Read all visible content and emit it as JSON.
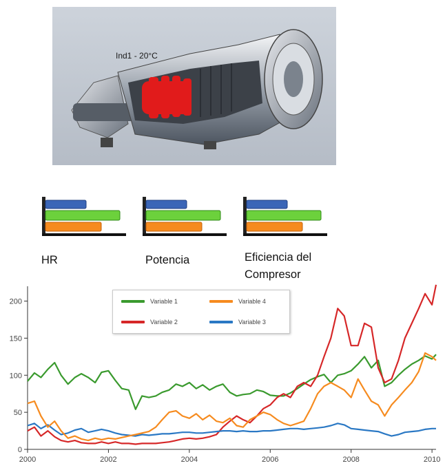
{
  "image": {
    "caption": "Ind1 - 20°C"
  },
  "kpis": [
    {
      "label": "HR",
      "bars": [
        0.55,
        1.0,
        0.75
      ]
    },
    {
      "label": "Potencia",
      "bars": [
        0.55,
        1.0,
        0.75
      ]
    },
    {
      "label": "Eficiencia del Compresor",
      "bars": [
        0.55,
        1.0,
        0.75
      ]
    }
  ],
  "colors": {
    "variable_1": "#3a9a2e",
    "variable_2": "#d62728",
    "variable_3": "#2a78c4",
    "variable_4": "#f68b1f",
    "kpi_blue": "#3b66b7",
    "kpi_green": "#6cd13c",
    "kpi_orange": "#f68b1f"
  },
  "chart_data": {
    "type": "line",
    "xlim": [
      2000,
      2010.1
    ],
    "ylim": [
      0,
      220
    ],
    "xticks": [
      2000,
      2002,
      2004,
      2006,
      2008,
      2010
    ],
    "yticks": [
      0,
      50,
      100,
      150,
      200
    ],
    "legend_position": "top-center",
    "x": [
      2000,
      2000.17,
      2000.33,
      2000.5,
      2000.67,
      2000.83,
      2001,
      2001.17,
      2001.33,
      2001.5,
      2001.67,
      2001.83,
      2002,
      2002.17,
      2002.33,
      2002.5,
      2002.67,
      2002.83,
      2003,
      2003.17,
      2003.33,
      2003.5,
      2003.67,
      2003.83,
      2004,
      2004.17,
      2004.33,
      2004.5,
      2004.67,
      2004.83,
      2005,
      2005.17,
      2005.33,
      2005.5,
      2005.67,
      2005.83,
      2006,
      2006.17,
      2006.33,
      2006.5,
      2006.67,
      2006.83,
      2007,
      2007.17,
      2007.33,
      2007.5,
      2007.67,
      2007.83,
      2008,
      2008.17,
      2008.33,
      2008.5,
      2008.67,
      2008.83,
      2009,
      2009.17,
      2009.33,
      2009.5,
      2009.67,
      2009.83,
      2010,
      2010.1
    ],
    "series": [
      {
        "name": "Variable 1",
        "color_key": "variable_1",
        "values": [
          92,
          103,
          97,
          108,
          117,
          100,
          88,
          97,
          102,
          97,
          90,
          104,
          106,
          93,
          82,
          80,
          54,
          72,
          70,
          72,
          77,
          80,
          88,
          85,
          90,
          82,
          87,
          80,
          85,
          88,
          77,
          72,
          74,
          75,
          80,
          78,
          73,
          72,
          72,
          76,
          82,
          88,
          94,
          98,
          101,
          90,
          100,
          102,
          106,
          115,
          125,
          110,
          120,
          85,
          90,
          100,
          108,
          115,
          120,
          126,
          122,
          128
        ]
      },
      {
        "name": "Variable 2",
        "color_key": "variable_2",
        "values": [
          25,
          30,
          18,
          25,
          17,
          12,
          10,
          12,
          9,
          8,
          8,
          10,
          8,
          10,
          8,
          8,
          7,
          8,
          8,
          8,
          9,
          10,
          12,
          14,
          15,
          14,
          15,
          17,
          20,
          30,
          38,
          45,
          40,
          36,
          45,
          55,
          60,
          70,
          75,
          70,
          85,
          90,
          85,
          100,
          125,
          150,
          190,
          180,
          140,
          140,
          170,
          165,
          110,
          90,
          95,
          120,
          150,
          170,
          190,
          210,
          195,
          222
        ]
      },
      {
        "name": "Variable 3",
        "color_key": "variable_3",
        "values": [
          32,
          35,
          28,
          33,
          26,
          20,
          22,
          26,
          28,
          23,
          25,
          27,
          25,
          22,
          20,
          19,
          18,
          20,
          19,
          20,
          21,
          21,
          22,
          23,
          23,
          22,
          22,
          23,
          24,
          25,
          25,
          24,
          25,
          24,
          24,
          25,
          25,
          26,
          27,
          28,
          28,
          27,
          28,
          29,
          30,
          32,
          35,
          33,
          28,
          27,
          26,
          25,
          24,
          21,
          18,
          20,
          23,
          24,
          25,
          27,
          28,
          28
        ]
      },
      {
        "name": "Variable 4",
        "color_key": "variable_4",
        "values": [
          62,
          65,
          45,
          30,
          38,
          25,
          15,
          18,
          14,
          12,
          15,
          13,
          15,
          14,
          16,
          18,
          20,
          22,
          24,
          30,
          40,
          50,
          52,
          45,
          42,
          48,
          40,
          46,
          38,
          36,
          42,
          32,
          30,
          40,
          45,
          50,
          47,
          40,
          35,
          32,
          35,
          38,
          55,
          75,
          85,
          90,
          85,
          80,
          70,
          95,
          80,
          65,
          60,
          45,
          60,
          70,
          80,
          90,
          105,
          130,
          125,
          120
        ]
      }
    ]
  }
}
